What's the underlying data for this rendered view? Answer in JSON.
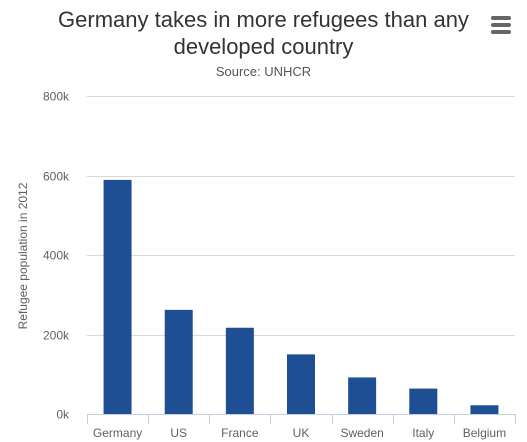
{
  "title": "Germany takes in more refugees than any developed country",
  "subtitle": "Source: UNHCR",
  "menu": {
    "icon": "hamburger-menu-icon"
  },
  "colors": {
    "bar": "#1e4e94",
    "grid": "#d8d8d8",
    "axis": "#c0d0e0",
    "text": "#606060"
  },
  "chart_data": {
    "type": "bar",
    "title": "Germany takes in more refugees than any developed country",
    "subtitle": "Source: UNHCR",
    "categories": [
      "Germany",
      "US",
      "France",
      "UK",
      "Sweden",
      "Italy",
      "Belgium"
    ],
    "values": [
      589000,
      262000,
      217000,
      150000,
      92000,
      64000,
      22000
    ],
    "xlabel": "",
    "ylabel": "Refugee population in 2012",
    "ylim": [
      0,
      800000
    ],
    "yticks": [
      0,
      200000,
      400000,
      600000,
      800000
    ],
    "ytick_labels": [
      "0k",
      "200k",
      "400k",
      "600k",
      "800k"
    ],
    "grid": true,
    "legend": "none"
  }
}
